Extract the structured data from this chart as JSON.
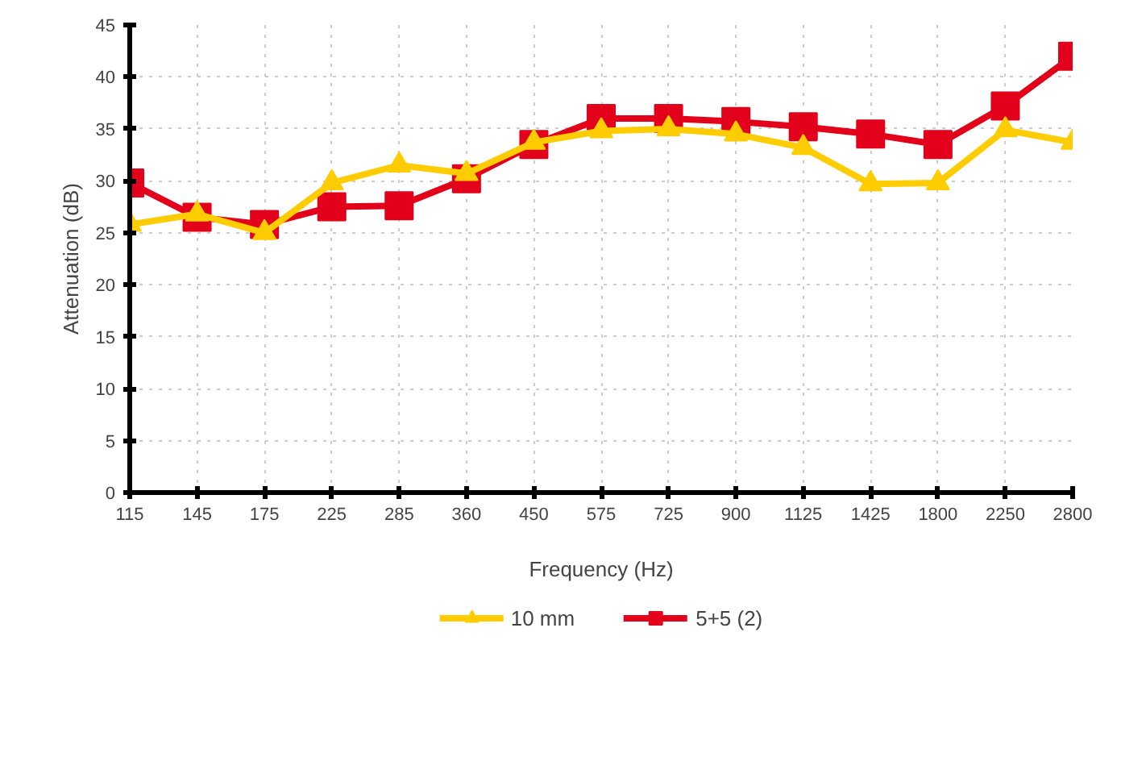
{
  "chart_data": {
    "type": "line",
    "xlabel": "Frequency (Hz)",
    "ylabel": "Attenuation (dB)",
    "categories": [
      "115",
      "145",
      "175",
      "225",
      "285",
      "360",
      "450",
      "575",
      "725",
      "900",
      "1125",
      "1425",
      "1800",
      "2250",
      "2800"
    ],
    "series": [
      {
        "name": "10 mm",
        "color": "#ffcc00",
        "marker": "triangle",
        "values": [
          25.8,
          26.8,
          25,
          29.8,
          31.5,
          30.7,
          33.7,
          34.8,
          35,
          34.5,
          33.2,
          29.7,
          29.8,
          34.9,
          33.7
        ]
      },
      {
        "name": "5+5 (2)",
        "color": "#e2001a",
        "marker": "square",
        "values": [
          29.8,
          26.5,
          25.8,
          27.5,
          27.6,
          30.2,
          33.5,
          36,
          36,
          35.7,
          35.2,
          34.5,
          33.5,
          37.2,
          42
        ]
      }
    ],
    "ylim": [
      0,
      45
    ],
    "yticks": [
      0,
      5,
      10,
      15,
      20,
      25,
      30,
      35,
      40,
      45
    ],
    "grid": true,
    "legend": "bottom",
    "line_style": "solid"
  }
}
